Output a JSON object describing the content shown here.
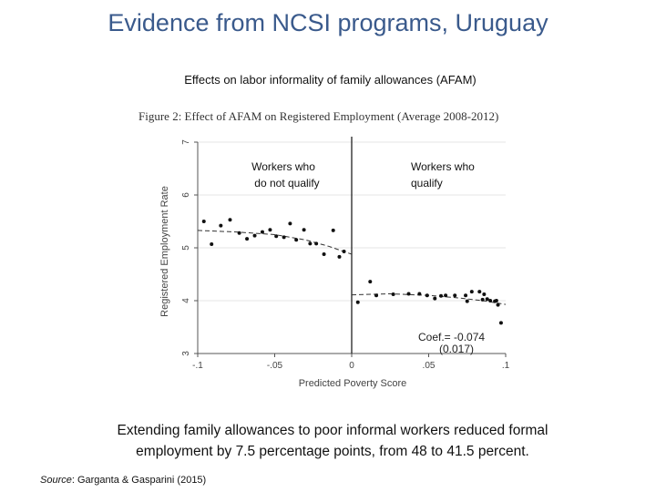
{
  "slide": {
    "title": "Evidence from NCSI programs, Uruguay",
    "subtitle": "Effects on labor informality of family allowances (AFAM)",
    "figure_caption": "Figure 2:  Effect of AFAM on Registered Employment (Average 2008-2012)",
    "takeaway_line1": "Extending family allowances to poor informal workers reduced formal",
    "takeaway_line2": "employment by 7.5 percentage points, from 48 to 41.5 percent.",
    "source_label": "Source",
    "source_text": ": Garganta & Gasparini (2015)"
  },
  "chart_data": {
    "type": "scatter",
    "title": "Effect of AFAM on Registered Employment (Average 2008-2012)",
    "xlabel": "Predicted Poverty Score",
    "ylabel": "Registered Employment Rate",
    "xlim": [
      -0.1,
      0.1
    ],
    "ylim": [
      3,
      7
    ],
    "x_ticks": [
      -0.1,
      -0.05,
      0,
      0.05,
      0.1
    ],
    "x_tick_labels": [
      "-.1",
      "-.05",
      "0",
      ".05",
      ".1"
    ],
    "y_ticks": [
      3,
      4,
      5,
      6,
      7
    ],
    "y_tick_labels": [
      "3",
      "4",
      "5",
      "6",
      "7"
    ],
    "cutoff": 0,
    "grid": true,
    "region_labels": {
      "left_line1": "Workers who",
      "left_line2": "do not qualify",
      "right_line1": "Workers who",
      "right_line2": "qualify"
    },
    "annotation_coef": "Coef.= -0.074",
    "annotation_se": "(0.017)",
    "series": [
      {
        "name": "Workers who do not qualify",
        "points": [
          [
            -0.096,
            5.5
          ],
          [
            -0.091,
            5.07
          ],
          [
            -0.085,
            5.42
          ],
          [
            -0.079,
            5.53
          ],
          [
            -0.073,
            5.28
          ],
          [
            -0.068,
            5.17
          ],
          [
            -0.063,
            5.23
          ],
          [
            -0.058,
            5.3
          ],
          [
            -0.053,
            5.34
          ],
          [
            -0.049,
            5.22
          ],
          [
            -0.044,
            5.2
          ],
          [
            -0.04,
            5.46
          ],
          [
            -0.036,
            5.15
          ],
          [
            -0.031,
            5.34
          ],
          [
            -0.027,
            5.08
          ],
          [
            -0.023,
            5.08
          ],
          [
            -0.018,
            4.88
          ],
          [
            -0.012,
            5.33
          ],
          [
            -0.008,
            4.83
          ],
          [
            -0.005,
            4.93
          ]
        ],
        "fit": [
          [
            -0.1,
            5.33
          ],
          [
            -0.075,
            5.3
          ],
          [
            -0.05,
            5.25
          ],
          [
            -0.03,
            5.15
          ],
          [
            -0.015,
            5.03
          ],
          [
            0,
            4.88
          ]
        ]
      },
      {
        "name": "Workers who qualify",
        "points": [
          [
            0.004,
            3.97
          ],
          [
            0.012,
            4.36
          ],
          [
            0.016,
            4.1
          ],
          [
            0.027,
            4.12
          ],
          [
            0.037,
            4.13
          ],
          [
            0.044,
            4.13
          ],
          [
            0.049,
            4.1
          ],
          [
            0.054,
            4.04
          ],
          [
            0.058,
            4.09
          ],
          [
            0.061,
            4.1
          ],
          [
            0.067,
            4.1
          ],
          [
            0.075,
            3.99
          ],
          [
            0.078,
            4.17
          ],
          [
            0.074,
            4.1
          ],
          [
            0.085,
            4.02
          ],
          [
            0.088,
            4.03
          ],
          [
            0.09,
            4.0
          ],
          [
            0.093,
            3.99
          ],
          [
            0.094,
            4.0
          ],
          [
            0.083,
            4.17
          ],
          [
            0.095,
            3.92
          ],
          [
            0.086,
            4.12
          ],
          [
            0.097,
            3.58
          ]
        ],
        "fit": [
          [
            0,
            4.11
          ],
          [
            0.025,
            4.13
          ],
          [
            0.05,
            4.1
          ],
          [
            0.07,
            4.05
          ],
          [
            0.085,
            4.0
          ],
          [
            0.1,
            3.93
          ]
        ]
      }
    ]
  }
}
